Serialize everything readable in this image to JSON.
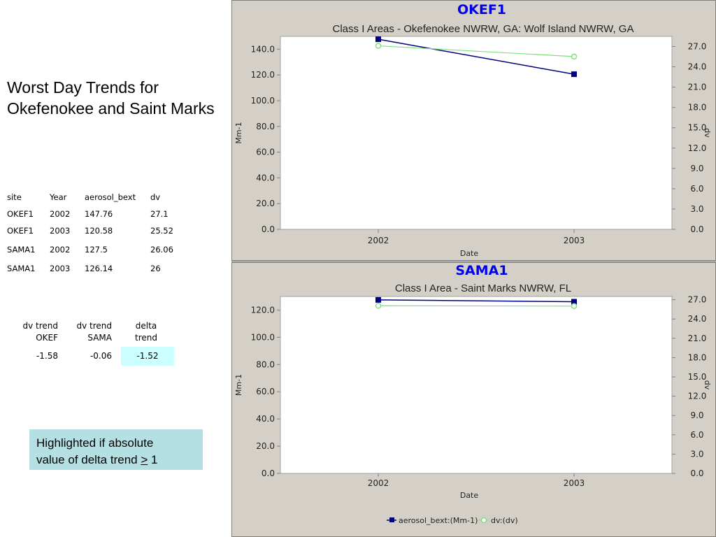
{
  "page": {
    "title": "Worst Day Trends for Okefenokee and Saint Marks"
  },
  "data_table": {
    "headers": [
      "site",
      "Year",
      "aerosol_bext",
      "dv"
    ],
    "rows": [
      [
        "OKEF1",
        "2002",
        "147.76",
        "27.1"
      ],
      [
        "OKEF1",
        "2003",
        "120.58",
        "25.52"
      ],
      [
        "SAMA1",
        "2002",
        "127.5",
        "26.06"
      ],
      [
        "SAMA1",
        "2003",
        "126.14",
        "26"
      ]
    ]
  },
  "trend_table": {
    "columns": [
      {
        "header1": "dv trend",
        "header2": "OKEF",
        "value": "-1.58"
      },
      {
        "header1": "dv trend",
        "header2": "SAMA",
        "value": "-0.06"
      },
      {
        "header1": "delta",
        "header2": "trend",
        "value": "-1.52"
      }
    ],
    "highlight_color": "#ccffff"
  },
  "note": {
    "line1": "Highlighted if absolute",
    "line2_prefix": "value of delta trend ",
    "line2_symbol": ">",
    "line2_suffix": " 1",
    "background": "#b4dfe3"
  },
  "chart_data": [
    {
      "type": "line",
      "title": "OKEF1",
      "subtitle": "Class I Areas - Okefenokee NWRW, GA: Wolf Island NWRW, GA",
      "xlabel": "Date",
      "ylabel": "Mm-1",
      "y2label": "dv",
      "categories": [
        "2002",
        "2003"
      ],
      "ylim": [
        0,
        150
      ],
      "yticks": [
        "0.0",
        "20.0",
        "40.0",
        "60.0",
        "80.0",
        "100.0",
        "120.0",
        "140.0"
      ],
      "y2lim": [
        0,
        28.5
      ],
      "y2ticks": [
        "0.0",
        "3.0",
        "6.0",
        "9.0",
        "12.0",
        "15.0",
        "18.0",
        "21.0",
        "24.0",
        "27.0"
      ],
      "series": [
        {
          "name": "aerosol_bext:(Mm-1)",
          "axis": "left",
          "values": [
            147.76,
            120.58
          ],
          "color": "#000080",
          "marker": "square"
        },
        {
          "name": "dv:(dv)",
          "axis": "right",
          "values": [
            27.1,
            25.52
          ],
          "color": "#80e080",
          "marker": "circle"
        }
      ]
    },
    {
      "type": "line",
      "title": "SAMA1",
      "subtitle": "Class I Area - Saint Marks NWRW, FL",
      "xlabel": "Date",
      "ylabel": "Mm-1",
      "y2label": "dv",
      "categories": [
        "2002",
        "2003"
      ],
      "ylim": [
        0,
        130
      ],
      "yticks": [
        "0.0",
        "20.0",
        "40.0",
        "60.0",
        "80.0",
        "100.0",
        "120.0"
      ],
      "y2lim": [
        0,
        27.5
      ],
      "y2ticks": [
        "0.0",
        "3.0",
        "6.0",
        "9.0",
        "12.0",
        "15.0",
        "18.0",
        "21.0",
        "24.0",
        "27.0"
      ],
      "series": [
        {
          "name": "aerosol_bext:(Mm-1)",
          "axis": "left",
          "values": [
            127.5,
            126.14
          ],
          "color": "#000080",
          "marker": "square"
        },
        {
          "name": "dv:(dv)",
          "axis": "right",
          "values": [
            26.06,
            26
          ],
          "color": "#80e080",
          "marker": "circle"
        }
      ]
    }
  ],
  "legend": {
    "placement": "bottom",
    "items": [
      {
        "label": "aerosol_bext:(Mm-1)",
        "color": "#000080",
        "marker": "square"
      },
      {
        "label": "dv:(dv)",
        "color": "#80e080",
        "marker": "circle"
      }
    ]
  },
  "colors": {
    "title_blue": "#0000ee",
    "panel_bg": "#d4d0c8"
  }
}
